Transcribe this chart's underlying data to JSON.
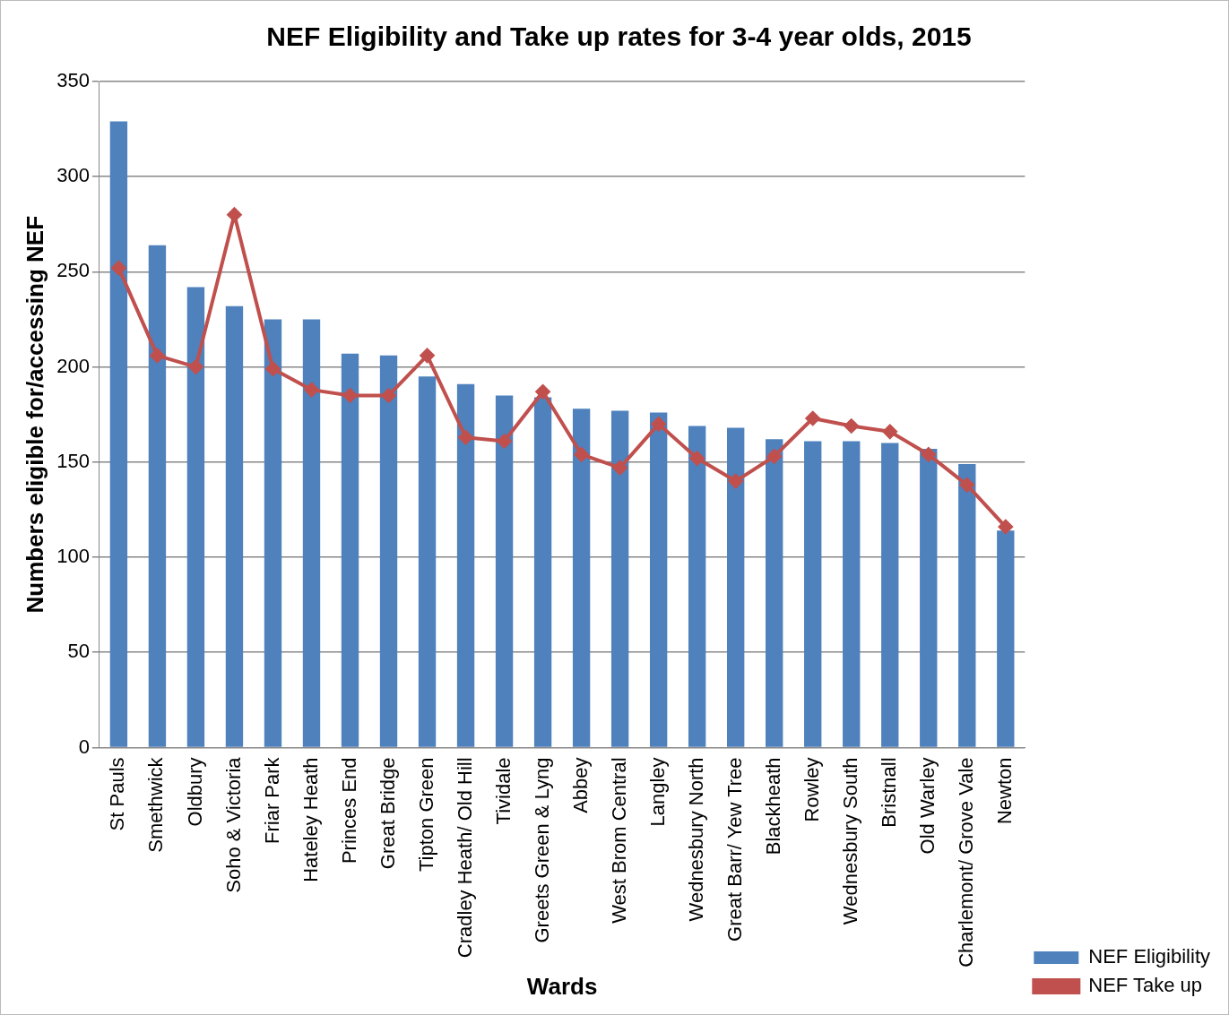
{
  "chart_data": {
    "type": "bar",
    "title": "NEF Eligibility and Take up rates for 3-4 year olds, 2015",
    "xlabel": "Wards",
    "ylabel": "Numbers eligible for/accessing NEF",
    "categories": [
      "St Pauls",
      "Smethwick",
      "Oldbury",
      "Soho & Victoria",
      "Friar Park",
      "Hateley Heath",
      "Princes End",
      "Great Bridge",
      "Tipton Green",
      "Cradley Heath/ Old Hill",
      "Tividale",
      "Greets Green & Lyng",
      "Abbey",
      "West Brom Central",
      "Langley",
      "Wednesbury North",
      "Great Barr/ Yew Tree",
      "Blackheath",
      "Rowley",
      "Wednesbury South",
      "Bristnall",
      "Old Warley",
      "Charlemont/ Grove Vale",
      "Newton"
    ],
    "series": [
      {
        "name": "NEF Eligibility",
        "color": "#4f81bd",
        "values": [
          329,
          264,
          242,
          232,
          225,
          225,
          207,
          206,
          195,
          191,
          185,
          184,
          178,
          177,
          176,
          169,
          168,
          162,
          161,
          161,
          160,
          157,
          149,
          114
        ]
      },
      {
        "name": "NEF Take up",
        "type": "line",
        "color": "#c0504d",
        "marker": "diamond",
        "values": [
          252,
          206,
          200,
          280,
          199,
          188,
          185,
          185,
          206,
          163,
          161,
          187,
          154,
          147,
          170,
          152,
          140,
          153,
          173,
          169,
          166,
          154,
          138,
          116
        ]
      }
    ],
    "ylim": [
      0,
      350
    ],
    "yticks": [
      0,
      50,
      100,
      150,
      200,
      250,
      300,
      350
    ],
    "grid": "y",
    "legend": "bottom right"
  }
}
